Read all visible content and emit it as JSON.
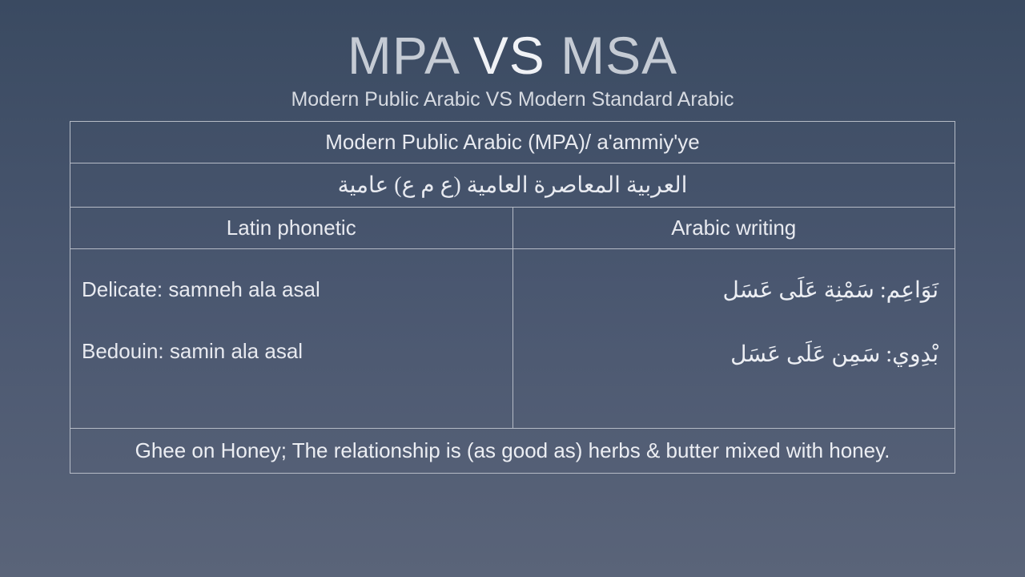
{
  "colors": {
    "bg_top": "#3a4a61",
    "bg_bottom": "#5a6479",
    "border": "#b5bbc6",
    "text_main": "#d8dce3",
    "text_bright": "#f0f2f6"
  },
  "typography": {
    "title_fontsize": 66,
    "subtitle_fontsize": 25,
    "header_fontsize": 26,
    "content_fontsize": 26,
    "arabic_fontsize": 28,
    "weight": 300
  },
  "title": {
    "part1": "MPA ",
    "part2": "VS",
    "part3": " MSA"
  },
  "subtitle": "Modern Public Arabic VS Modern Standard Arabic",
  "table": {
    "header_en": "Modern Public Arabic (MPA)/ a'ammiy'ye",
    "header_ar": "العربية المعاصرة العامية (ع م ع) عامية",
    "col_left": "Latin phonetic",
    "col_right": "Arabic writing",
    "left_line1": "Delicate: samneh ala asal",
    "left_line2": "Bedouin: samin ala asal",
    "right_line1": "نَوَاعِم: سَمْنِة عَلَى عَسَل",
    "right_line2": "بْدِوي: سَمِن عَلَى عَسَل",
    "footer": "Ghee on Honey; The relationship is (as good as) herbs & butter mixed with honey."
  }
}
